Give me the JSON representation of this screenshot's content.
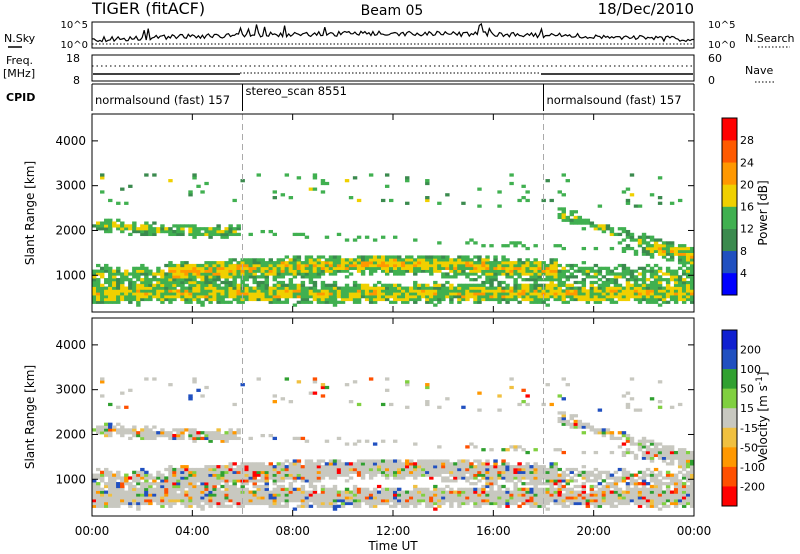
{
  "header": {
    "title": "TIGER (fitACF)",
    "beam": "Beam 05",
    "date": "18/Dec/2010"
  },
  "top_panels": {
    "nsky": {
      "label": "N.Sky",
      "right_label": "N.Search",
      "y_ticks": [
        "10^5",
        "10^0"
      ]
    },
    "freq": {
      "label_line1": "Freq.",
      "label_line2": "[MHz]",
      "right_label": "Nave",
      "y_ticks_left": [
        "18",
        "8"
      ],
      "y_ticks_right": [
        "60",
        "0"
      ]
    },
    "cpid": {
      "label": "CPID",
      "segments": [
        {
          "name": "normalsound (fast) 157",
          "start_hour": 0,
          "end_hour": 6
        },
        {
          "name": "stereo_scan 8551",
          "start_hour": 6,
          "end_hour": 18
        },
        {
          "name": "normalsound (fast) 157",
          "start_hour": 18,
          "end_hour": 24
        }
      ]
    }
  },
  "x_axis": {
    "label": "Time UT",
    "ticks": [
      "00:00",
      "04:00",
      "08:00",
      "12:00",
      "16:00",
      "20:00",
      "00:00"
    ],
    "range_hours": [
      0,
      24
    ]
  },
  "colors": {
    "power": [
      "#0000ff",
      "#2050c0",
      "#3b8a4e",
      "#40b050",
      "#f0d000",
      "#ff9800",
      "#ff5a00",
      "#ff0000"
    ],
    "velocity": [
      "#ff0000",
      "#ff5000",
      "#ff9800",
      "#f0c040",
      "#c8c8c0",
      "#c8c8c0",
      "#80d040",
      "#30a030",
      "#2050c0",
      "#1020d0"
    ]
  },
  "chart_data": [
    {
      "type": "heatmap",
      "panel": "power",
      "ylabel": "Slant Range [km]",
      "y_ticks": [
        1000,
        2000,
        3000,
        4000
      ],
      "ylim": [
        180,
        4600
      ],
      "xlim_hours": [
        0,
        24
      ],
      "colorbar": {
        "label": "Power [dB]",
        "ticks": [
          "4",
          "8",
          "12",
          "16",
          "20",
          "24",
          "28"
        ],
        "range": [
          0,
          32
        ]
      }
    },
    {
      "type": "heatmap",
      "panel": "velocity",
      "ylabel": "Slant Range [km]",
      "y_ticks": [
        1000,
        2000,
        3000,
        4000
      ],
      "ylim": [
        180,
        4600
      ],
      "xlim_hours": [
        0,
        24
      ],
      "colorbar": {
        "label": "Velocity [m s",
        "label_sup": "-1",
        "label_end": "]",
        "ticks": [
          "200",
          "100",
          "50",
          "15",
          "-15",
          "-50",
          "-100",
          "-200"
        ]
      }
    }
  ]
}
